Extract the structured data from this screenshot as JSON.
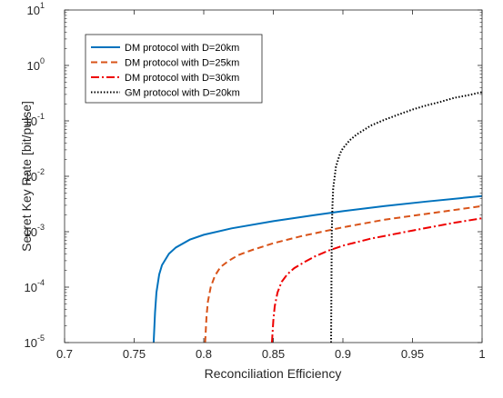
{
  "chart_data": {
    "type": "line",
    "xlabel": "Reconciliation Efficiency",
    "ylabel": "Secret Key Rate [bit/pulse]",
    "xlim": [
      0.7,
      1.0
    ],
    "ylim": [
      1e-05,
      10
    ],
    "yscale": "log",
    "grid": false,
    "legend_position": "top-left",
    "x_ticks": [
      "0.7",
      "0.75",
      "0.8",
      "0.85",
      "0.9",
      "0.95",
      "1"
    ],
    "x_tick_values": [
      0.7,
      0.75,
      0.8,
      0.85,
      0.9,
      0.95,
      1.0
    ],
    "y_ticks": [
      {
        "base": "10",
        "exp": "-5",
        "value": 1e-05
      },
      {
        "base": "10",
        "exp": "-4",
        "value": 0.0001
      },
      {
        "base": "10",
        "exp": "-3",
        "value": 0.001
      },
      {
        "base": "10",
        "exp": "-2",
        "value": 0.01
      },
      {
        "base": "10",
        "exp": "-1",
        "value": 0.1
      },
      {
        "base": "10",
        "exp": "0",
        "value": 1
      },
      {
        "base": "10",
        "exp": "1",
        "value": 10
      }
    ],
    "series": [
      {
        "name": "DM protocol with D=20km",
        "color": "#0072BD",
        "dash": "solid",
        "x": [
          0.764,
          0.765,
          0.766,
          0.768,
          0.77,
          0.775,
          0.78,
          0.79,
          0.8,
          0.82,
          0.85,
          0.88,
          0.9,
          0.93,
          0.96,
          1.0
        ],
        "y": [
          1e-05,
          3.5e-05,
          8e-05,
          0.00017,
          0.00025,
          0.0004,
          0.00052,
          0.00072,
          0.00088,
          0.00115,
          0.00155,
          0.002,
          0.00235,
          0.0029,
          0.0035,
          0.0044
        ]
      },
      {
        "name": "DM protocol with D=25km",
        "color": "#D95319",
        "dash": "dashed",
        "x": [
          0.801,
          0.802,
          0.803,
          0.805,
          0.808,
          0.812,
          0.818,
          0.825,
          0.835,
          0.85,
          0.87,
          0.9,
          0.93,
          0.96,
          1.0
        ],
        "y": [
          1e-05,
          3e-05,
          5.5e-05,
          0.0001,
          0.00016,
          0.00023,
          0.0003,
          0.00038,
          0.00047,
          0.00062,
          0.00083,
          0.0012,
          0.00165,
          0.0021,
          0.0029
        ]
      },
      {
        "name": "DM protocol with D=30km",
        "color": "#EE0000",
        "dash": "dashdot",
        "x": [
          0.849,
          0.85,
          0.851,
          0.853,
          0.856,
          0.86,
          0.865,
          0.872,
          0.88,
          0.89,
          0.9,
          0.92,
          0.95,
          0.98,
          1.0
        ],
        "y": [
          1e-05,
          2.5e-05,
          4.5e-05,
          8e-05,
          0.000125,
          0.00017,
          0.00022,
          0.00028,
          0.00036,
          0.00046,
          0.00056,
          0.00075,
          0.00105,
          0.00145,
          0.00175
        ]
      },
      {
        "name": "GM protocol with D=20km",
        "color": "#000000",
        "dash": "dotted",
        "x": [
          0.8915,
          0.892,
          0.8925,
          0.893,
          0.895,
          0.898,
          0.9,
          0.905,
          0.91,
          0.92,
          0.93,
          0.94,
          0.95,
          0.96,
          0.97,
          0.98,
          0.99,
          1.0
        ],
        "y": [
          1e-05,
          0.001,
          0.003,
          0.006,
          0.015,
          0.026,
          0.032,
          0.045,
          0.057,
          0.082,
          0.105,
          0.13,
          0.16,
          0.19,
          0.22,
          0.26,
          0.29,
          0.33
        ]
      }
    ]
  }
}
